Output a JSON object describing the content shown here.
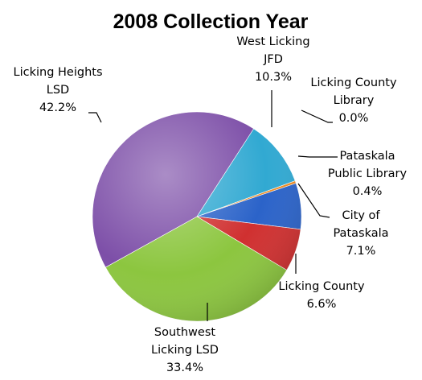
{
  "chart_data": {
    "type": "pie",
    "title": "2008 Collection Year",
    "slices": [
      {
        "label_lines": [
          "Licking County",
          "Library"
        ],
        "pct_text": "0.0%",
        "value": 0.0,
        "color": "#f4b183"
      },
      {
        "label_lines": [
          "Pataskala",
          "Public Library"
        ],
        "pct_text": "0.4%",
        "value": 0.4,
        "color": "#f08a1e"
      },
      {
        "label_lines": [
          "City of",
          "Pataskala"
        ],
        "pct_text": "7.1%",
        "value": 7.1,
        "color": "#2b63c9"
      },
      {
        "label_lines": [
          "Licking County"
        ],
        "pct_text": "6.6%",
        "value": 6.6,
        "color": "#d03030"
      },
      {
        "label_lines": [
          "Southwest",
          "Licking LSD"
        ],
        "pct_text": "33.4%",
        "value": 33.4,
        "color": "#8cc63f"
      },
      {
        "label_lines": [
          "Licking Heights",
          "LSD"
        ],
        "pct_text": "42.2%",
        "value": 42.2,
        "color": "#7d4fa8"
      },
      {
        "label_lines": [
          "West Licking",
          "JFD"
        ],
        "pct_text": "10.3%",
        "value": 10.3,
        "color": "#31a9d2"
      }
    ]
  }
}
